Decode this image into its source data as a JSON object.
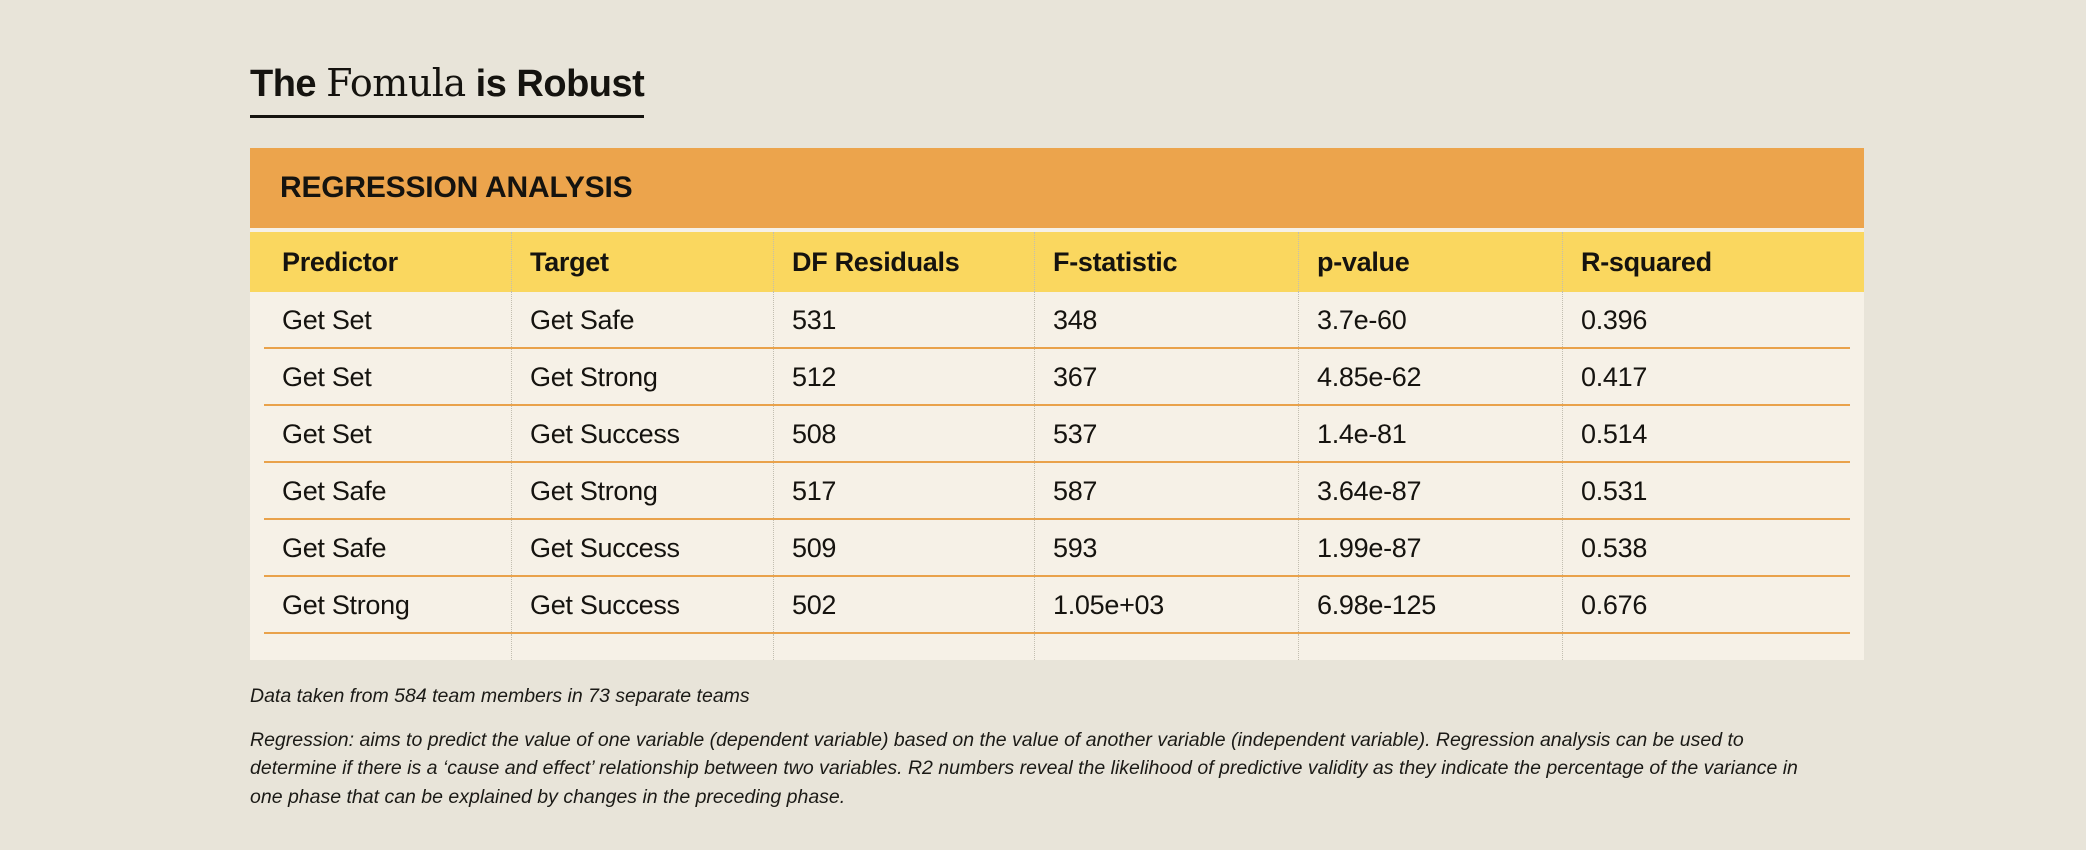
{
  "page_title": {
    "lead": "The ",
    "serif_word": "Fomula",
    "tail": " is Robust"
  },
  "table": {
    "banner": "REGRESSION ANALYSIS",
    "columns": [
      "Predictor",
      "Target",
      "DF Residuals",
      "F-statistic",
      "p-value",
      "R-squared"
    ],
    "rows": [
      [
        "Get Set",
        "Get Safe",
        "531",
        "348",
        "3.7e-60",
        "0.396"
      ],
      [
        "Get Set",
        "Get Strong",
        "512",
        "367",
        "4.85e-62",
        "0.417"
      ],
      [
        "Get Set",
        "Get Success",
        "508",
        "537",
        "1.4e-81",
        "0.514"
      ],
      [
        "Get Safe",
        "Get Strong",
        "517",
        "587",
        "3.64e-87",
        "0.531"
      ],
      [
        "Get Safe",
        "Get Success",
        "509",
        "593",
        "1.99e-87",
        "0.538"
      ],
      [
        "Get Strong",
        "Get Success",
        "502",
        "1.05e+03",
        "6.98e-125",
        "0.676"
      ]
    ]
  },
  "footnotes": {
    "source": "Data taken from 584 team members in 73 separate teams",
    "definition": "Regression: aims to predict the value of one variable (dependent variable) based on the value of another variable (independent variable). Regression analysis can be used to determine if there is a ‘cause and effect’ relationship between two variables. R2 numbers reveal the likelihood of predictive validity as they indicate the percentage of the variance in one phase that can be explained by changes in the preceding phase."
  },
  "colors": {
    "page_background": "#E8E4D9",
    "card_background": "#F6F1E7",
    "banner_orange": "#ECA44C",
    "header_yellow": "#FAD75F",
    "rule_orange": "#E9A24B",
    "text": "#15130F"
  }
}
